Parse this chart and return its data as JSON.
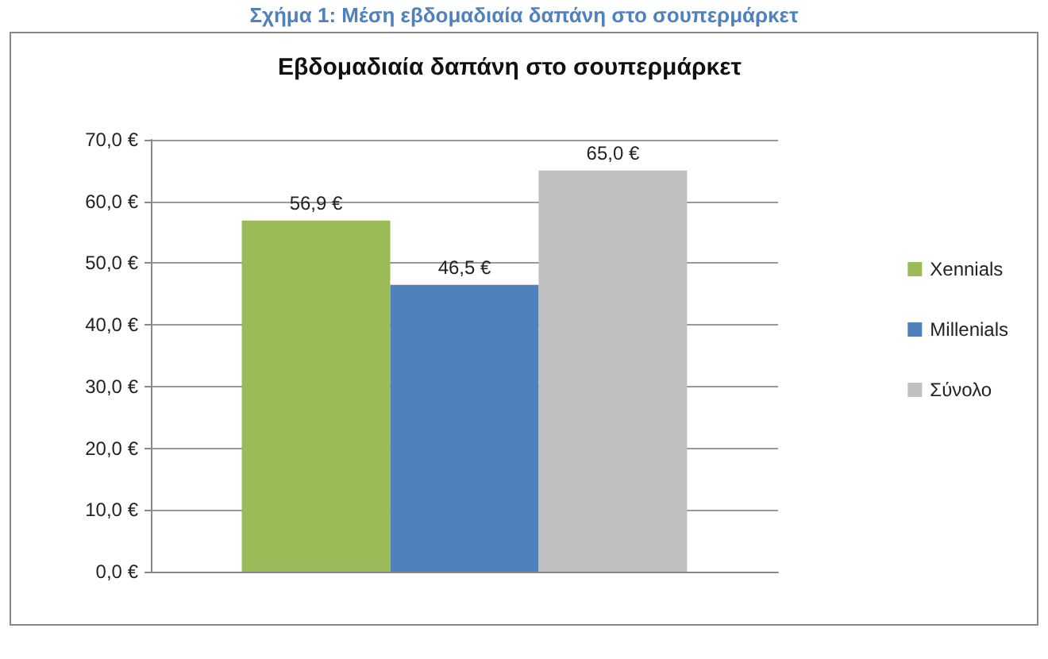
{
  "chart_data": {
    "type": "bar",
    "title": "Σχήμα 1: Μέση εβδομαδιαία δαπάνη στο σουπερμάρκετ",
    "subtitle": "Εβδομαδιαία δαπάνη στο σουπερμάρκετ",
    "categories": [
      null
    ],
    "series": [
      {
        "name": "Xennials",
        "color": "#9bbb59",
        "values": [
          56.9
        ],
        "value_labels": [
          "56,9 €"
        ]
      },
      {
        "name": "Millenials",
        "color": "#4f81bd",
        "values": [
          46.5
        ],
        "value_labels": [
          "46,5 €"
        ]
      },
      {
        "name": "Σύνολο",
        "color": "#c0c0c0",
        "values": [
          65.0
        ],
        "value_labels": [
          "65,0 €"
        ]
      }
    ],
    "ylim": [
      0,
      70
    ],
    "yticks": [
      {
        "value": 0,
        "label": "0,0 €"
      },
      {
        "value": 10,
        "label": "10,0 €"
      },
      {
        "value": 20,
        "label": "20,0 €"
      },
      {
        "value": 30,
        "label": "30,0 €"
      },
      {
        "value": 40,
        "label": "40,0 €"
      },
      {
        "value": 50,
        "label": "50,0 €"
      },
      {
        "value": 60,
        "label": "60,0 €"
      },
      {
        "value": 70,
        "label": "70,0 €"
      }
    ],
    "grid": "y",
    "legend": "right"
  }
}
